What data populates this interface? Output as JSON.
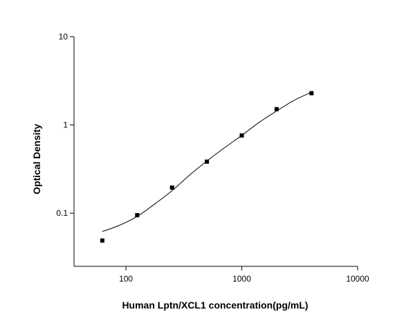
{
  "chart_data": {
    "type": "scatter",
    "xlabel": "Human Lptn/XCL1 concentration(pg/mL)",
    "ylabel": "Optical Density",
    "xscale": "log",
    "yscale": "log",
    "xlim": [
      35.6,
      10000
    ],
    "ylim": [
      0.025,
      10
    ],
    "xticks": [
      100,
      1000,
      10000
    ],
    "yticks": [
      0.1,
      1,
      10
    ],
    "series": [
      {
        "style": "markers",
        "color": "#000000",
        "x": [
          62.5,
          125,
          250,
          500,
          1000,
          2000,
          4000
        ],
        "values": [
          0.049,
          0.095,
          0.195,
          0.384,
          0.76,
          1.51,
          2.29
        ]
      },
      {
        "style": "line",
        "color": "#000000",
        "x": [
          62.5,
          88,
          125,
          177,
          250,
          354,
          500,
          707,
          1000,
          1414,
          2000,
          2828,
          4000
        ],
        "values": [
          0.062,
          0.073,
          0.092,
          0.127,
          0.18,
          0.27,
          0.39,
          0.55,
          0.76,
          1.07,
          1.44,
          1.9,
          2.35
        ]
      }
    ]
  }
}
